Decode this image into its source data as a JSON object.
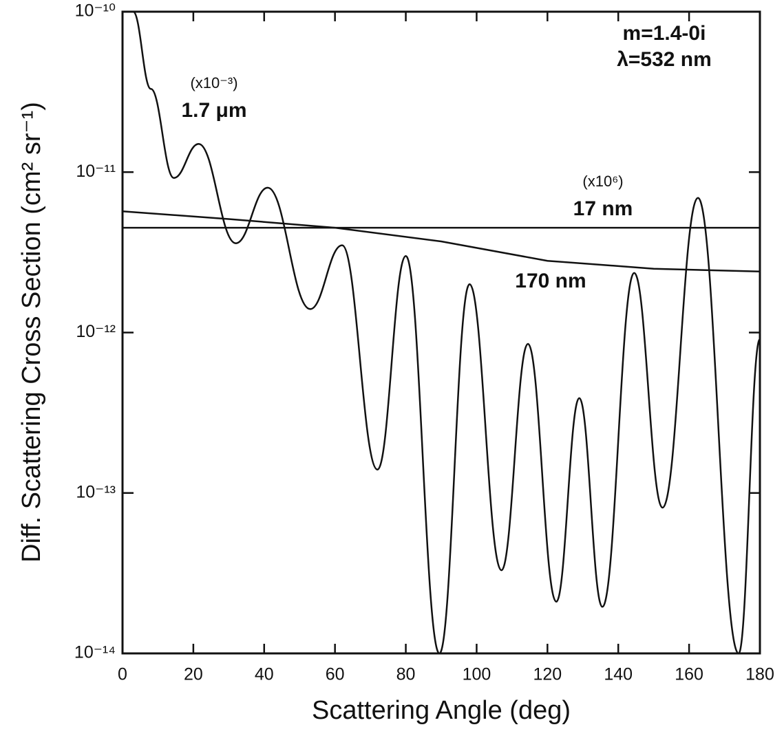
{
  "chart_data": {
    "type": "line",
    "x_label": "Scattering Angle (deg)",
    "y_label": "Diff. Scattering Cross Section (cm² sr⁻¹)",
    "log_y": true,
    "xlim": [
      0,
      180
    ],
    "xticks": [
      0,
      20,
      40,
      60,
      80,
      100,
      120,
      140,
      160,
      180
    ],
    "ylim": [
      1e-14,
      1e-10
    ],
    "yticks": [
      {
        "value": 1e-14,
        "label": "10⁻¹⁴"
      },
      {
        "value": 1e-13,
        "label": "10⁻¹³"
      },
      {
        "value": 1e-12,
        "label": "10⁻¹²"
      },
      {
        "value": 1e-11,
        "label": "10⁻¹¹"
      },
      {
        "value": 1e-10,
        "label": "10⁻¹⁰"
      }
    ],
    "annotations": [
      "m=1.4-0i",
      "λ=532 nm",
      "(x10⁻³)",
      "1.7 μm",
      "(x10⁶)",
      "17 nm",
      "170 nm"
    ],
    "series": [
      {
        "name": "1.7 μm",
        "color": "#111111",
        "x": [
          3,
          8,
          14.5,
          21.5,
          32,
          41,
          53,
          62,
          72,
          80,
          89.5,
          98,
          107,
          114.5,
          122.5,
          129,
          135.5,
          144.5,
          152.5,
          162.5,
          174,
          180
        ],
        "values": [
          1e-10,
          3.3e-11,
          9.2e-12,
          1.5e-11,
          3.6e-12,
          8e-12,
          1.4e-12,
          3.5e-12,
          1.4e-13,
          3e-12,
          1e-14,
          2e-12,
          3.3e-14,
          8.5e-13,
          2.1e-14,
          3.9e-13,
          1.95e-14,
          2.35e-12,
          8.1e-14,
          6.9e-12,
          1e-14,
          9.1e-13
        ]
      },
      {
        "name": "17 nm",
        "color": "#111111",
        "x": [
          0,
          180
        ],
        "values": [
          4.5e-12,
          4.5e-12
        ]
      },
      {
        "name": "170 nm",
        "color": "#111111",
        "x": [
          0,
          30,
          60,
          90,
          120,
          150,
          180
        ],
        "values": [
          5.7e-12,
          5.1e-12,
          4.5e-12,
          3.7e-12,
          2.8e-12,
          2.5e-12,
          2.4e-12
        ]
      }
    ]
  }
}
